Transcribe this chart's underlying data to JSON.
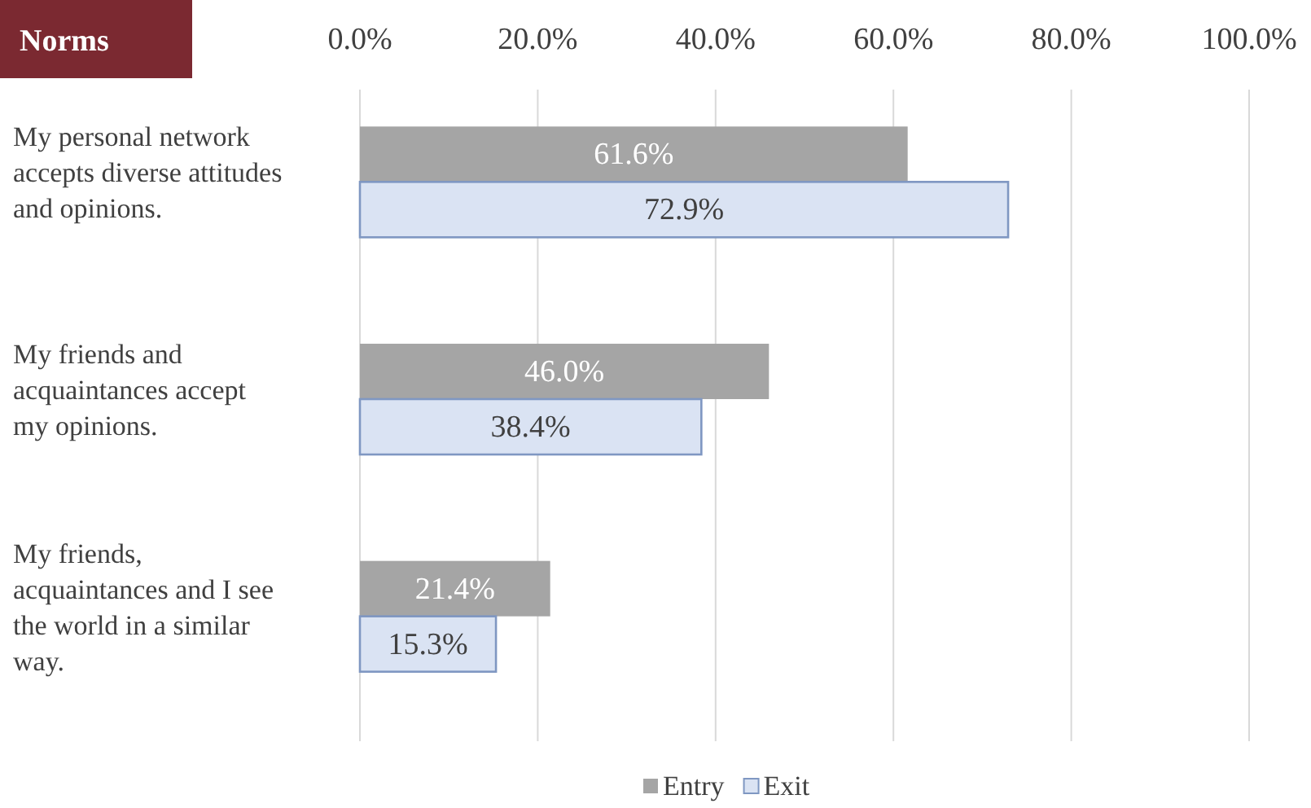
{
  "chart_data": {
    "type": "bar",
    "orientation": "horizontal",
    "title": "Norms",
    "categories": [
      "My personal network accepts diverse attitudes and opinions.",
      "My friends and acquaintances accept my opinions.",
      "My friends, acquaintances and I see the world in a similar way."
    ],
    "series": [
      {
        "name": "Entry",
        "color": "#a5a5a5",
        "values": [
          61.6,
          46.0,
          21.4
        ],
        "value_labels": [
          "61.6%",
          "46.0%",
          "21.4%"
        ]
      },
      {
        "name": "Exit",
        "color": "#dae3f3",
        "values": [
          72.9,
          38.4,
          15.3
        ],
        "value_labels": [
          "72.9%",
          "38.4%",
          "15.3%"
        ]
      }
    ],
    "xlim": [
      0,
      100
    ],
    "xticks": [
      {
        "value": 0,
        "label": "0.0%"
      },
      {
        "value": 20,
        "label": "20.0%"
      },
      {
        "value": 40,
        "label": "40.0%"
      },
      {
        "value": 60,
        "label": "60.0%"
      },
      {
        "value": 80,
        "label": "80.0%"
      },
      {
        "value": 100,
        "label": "100.0%"
      }
    ],
    "grid": "x",
    "legend": "bottom"
  }
}
